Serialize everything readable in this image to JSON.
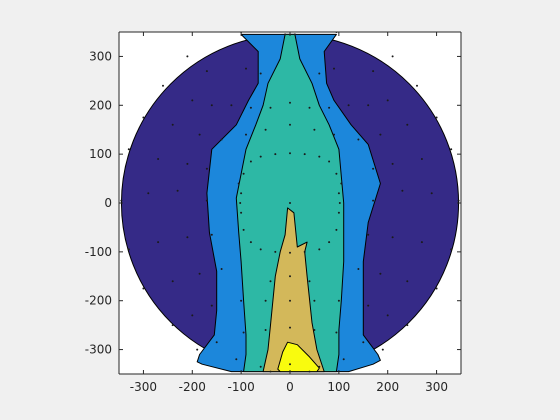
{
  "chart_data": {
    "type": "contour",
    "title": "",
    "xlabel": "",
    "ylabel": "",
    "xlim": [
      -350,
      350
    ],
    "ylim": [
      -350,
      350
    ],
    "xticks": [
      -300,
      -200,
      -100,
      0,
      100,
      200,
      300
    ],
    "yticks": [
      -300,
      -200,
      -100,
      0,
      100,
      200,
      300
    ],
    "xtick_labels": [
      "-300",
      "-200",
      "-100",
      "0",
      "100",
      "200",
      "300"
    ],
    "ytick_labels": [
      "-300",
      "-200",
      "-100",
      "0",
      "100",
      "200",
      "300"
    ],
    "grid": false,
    "legend": null,
    "outer_radius": 345,
    "colors": {
      "background": "#f0f0f0",
      "axes_face": "#ffffff",
      "level_1": "#352a87",
      "level_2": "#1c87db",
      "level_3": "#2db8a5",
      "level_4": "#d3b85a",
      "level_5": "#f9fb0e"
    },
    "levels": [
      {
        "level": 2,
        "polygons": [
          [
            [
              -100,
              345
            ],
            [
              -65,
              310
            ],
            [
              -65,
              245
            ],
            [
              -85,
              210
            ],
            [
              -110,
              160
            ],
            [
              -160,
              110
            ],
            [
              -170,
              20
            ],
            [
              -165,
              -60
            ],
            [
              -150,
              -140
            ],
            [
              -150,
              -220
            ],
            [
              -155,
              -270
            ],
            [
              -185,
              -310
            ],
            [
              -190,
              -325
            ],
            [
              -180,
              -330
            ],
            [
              -120,
              -345
            ],
            [
              0,
              -345
            ],
            [
              120,
              -345
            ],
            [
              170,
              -330
            ],
            [
              185,
              -322
            ],
            [
              180,
              -310
            ],
            [
              150,
              -270
            ],
            [
              150,
              -210
            ],
            [
              150,
              -120
            ],
            [
              160,
              -40
            ],
            [
              185,
              40
            ],
            [
              160,
              120
            ],
            [
              125,
              160
            ],
            [
              90,
              210
            ],
            [
              75,
              245
            ],
            [
              70,
              310
            ],
            [
              95,
              345
            ]
          ]
        ]
      },
      {
        "level": 3,
        "polygons": [
          [
            [
              -10,
              345
            ],
            [
              -20,
              295
            ],
            [
              -45,
              245
            ],
            [
              -55,
              200
            ],
            [
              -70,
              160
            ],
            [
              -90,
              110
            ],
            [
              -110,
              10
            ],
            [
              -105,
              -60
            ],
            [
              -100,
              -120
            ],
            [
              -95,
              -200
            ],
            [
              -90,
              -270
            ],
            [
              -90,
              -310
            ],
            [
              -95,
              -345
            ],
            [
              95,
              -345
            ],
            [
              100,
              -310
            ],
            [
              100,
              -260
            ],
            [
              105,
              -200
            ],
            [
              110,
              -120
            ],
            [
              110,
              -60
            ],
            [
              110,
              0
            ],
            [
              100,
              110
            ],
            [
              80,
              160
            ],
            [
              60,
              200
            ],
            [
              45,
              245
            ],
            [
              20,
              295
            ],
            [
              10,
              345
            ]
          ]
        ]
      },
      {
        "level": 4,
        "polygons": [
          [
            [
              -10,
              -65
            ],
            [
              -20,
              -100
            ],
            [
              -30,
              -150
            ],
            [
              -40,
              -250
            ],
            [
              -45,
              -300
            ],
            [
              -55,
              -345
            ],
            [
              70,
              -345
            ],
            [
              55,
              -300
            ],
            [
              45,
              -245
            ],
            [
              35,
              -150
            ],
            [
              30,
              -100
            ],
            [
              35,
              -80
            ],
            [
              15,
              -90
            ],
            [
              8,
              -20
            ],
            [
              -5,
              -10
            ]
          ]
        ]
      },
      {
        "level": 5,
        "polygons": [
          [
            [
              -25,
              -340
            ],
            [
              -15,
              -305
            ],
            [
              -5,
              -285
            ],
            [
              15,
              -290
            ],
            [
              40,
              -315
            ],
            [
              60,
              -338
            ],
            [
              55,
              -345
            ],
            [
              -20,
              -345
            ]
          ]
        ]
      }
    ],
    "sensor_points": [
      [
        -100,
        350
      ],
      [
        -10,
        345
      ],
      [
        10,
        345
      ],
      [
        95,
        350
      ],
      [
        -210,
        300
      ],
      [
        -170,
        270
      ],
      [
        -90,
        275
      ],
      [
        -60,
        265
      ],
      [
        60,
        265
      ],
      [
        90,
        275
      ],
      [
        170,
        270
      ],
      [
        210,
        300
      ],
      [
        -260,
        240
      ],
      [
        -200,
        210
      ],
      [
        -160,
        200
      ],
      [
        -120,
        200
      ],
      [
        -80,
        195
      ],
      [
        -40,
        195
      ],
      [
        0,
        205
      ],
      [
        40,
        195
      ],
      [
        80,
        195
      ],
      [
        120,
        200
      ],
      [
        160,
        200
      ],
      [
        200,
        210
      ],
      [
        260,
        240
      ],
      [
        -300,
        175
      ],
      [
        -240,
        160
      ],
      [
        -185,
        140
      ],
      [
        -140,
        130
      ],
      [
        -90,
        140
      ],
      [
        -50,
        150
      ],
      [
        0,
        160
      ],
      [
        50,
        150
      ],
      [
        90,
        140
      ],
      [
        140,
        130
      ],
      [
        185,
        140
      ],
      [
        240,
        160
      ],
      [
        300,
        175
      ],
      [
        -330,
        110
      ],
      [
        -270,
        90
      ],
      [
        -210,
        80
      ],
      [
        -170,
        70
      ],
      [
        -60,
        95
      ],
      [
        -30,
        100
      ],
      [
        0,
        102
      ],
      [
        30,
        100
      ],
      [
        60,
        95
      ],
      [
        170,
        70
      ],
      [
        210,
        80
      ],
      [
        270,
        90
      ],
      [
        330,
        110
      ],
      [
        -80,
        85
      ],
      [
        80,
        85
      ],
      [
        -95,
        60
      ],
      [
        95,
        60
      ],
      [
        -345,
        5
      ],
      [
        -290,
        20
      ],
      [
        -230,
        25
      ],
      [
        -170,
        5
      ],
      [
        -105,
        40
      ],
      [
        105,
        40
      ],
      [
        -100,
        20
      ],
      [
        100,
        20
      ],
      [
        -102,
        0
      ],
      [
        102,
        0
      ],
      [
        -100,
        -20
      ],
      [
        100,
        -20
      ],
      [
        170,
        5
      ],
      [
        230,
        25
      ],
      [
        290,
        20
      ],
      [
        345,
        5
      ],
      [
        0,
        0
      ],
      [
        -330,
        -95
      ],
      [
        -270,
        -80
      ],
      [
        -210,
        -70
      ],
      [
        -160,
        -65
      ],
      [
        -95,
        -55
      ],
      [
        95,
        -55
      ],
      [
        -80,
        -80
      ],
      [
        80,
        -80
      ],
      [
        -60,
        -95
      ],
      [
        60,
        -95
      ],
      [
        -30,
        -100
      ],
      [
        0,
        -102
      ],
      [
        30,
        -100
      ],
      [
        160,
        -65
      ],
      [
        210,
        -70
      ],
      [
        270,
        -80
      ],
      [
        330,
        -95
      ],
      [
        -300,
        -175
      ],
      [
        -240,
        -160
      ],
      [
        -185,
        -145
      ],
      [
        -140,
        -135
      ],
      [
        -40,
        -160
      ],
      [
        0,
        -150
      ],
      [
        40,
        -160
      ],
      [
        140,
        -135
      ],
      [
        185,
        -145
      ],
      [
        240,
        -160
      ],
      [
        300,
        -175
      ],
      [
        -240,
        -250
      ],
      [
        -200,
        -230
      ],
      [
        -160,
        -210
      ],
      [
        -100,
        -200
      ],
      [
        -50,
        -200
      ],
      [
        0,
        -200
      ],
      [
        50,
        -200
      ],
      [
        100,
        -200
      ],
      [
        160,
        -210
      ],
      [
        200,
        -230
      ],
      [
        240,
        -250
      ],
      [
        -190,
        -300
      ],
      [
        -150,
        -285
      ],
      [
        -95,
        -265
      ],
      [
        -50,
        -260
      ],
      [
        0,
        -255
      ],
      [
        50,
        -260
      ],
      [
        95,
        -265
      ],
      [
        150,
        -285
      ],
      [
        190,
        -300
      ],
      [
        -110,
        -320
      ],
      [
        -60,
        -335
      ],
      [
        0,
        -330
      ],
      [
        60,
        -335
      ],
      [
        110,
        -320
      ],
      [
        -40,
        -345
      ],
      [
        40,
        -345
      ]
    ]
  }
}
